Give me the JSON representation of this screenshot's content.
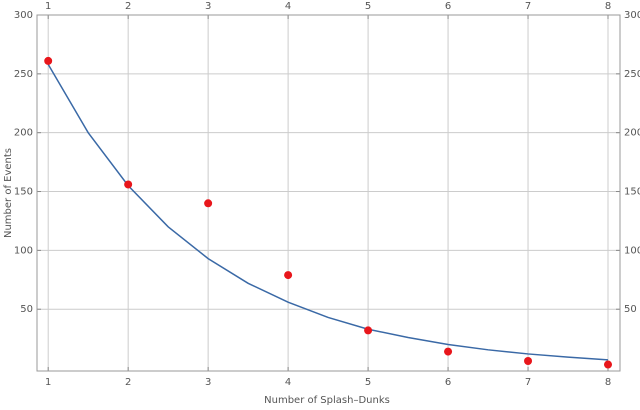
{
  "chart_data": {
    "type": "scatter",
    "x_label": "Number of Splash–Dunks",
    "y_label": "Number of Events",
    "xlim": [
      0.86,
      8.15
    ],
    "ylim": [
      -2.5,
      300
    ],
    "xticks": [
      1,
      2,
      3,
      4,
      5,
      6,
      7,
      8
    ],
    "yticks": [
      50,
      100,
      150,
      200,
      250,
      300
    ],
    "grid": true,
    "series": [
      {
        "type": "scatter",
        "color": "#e8161b",
        "x": [
          1,
          2,
          3,
          4,
          5,
          6,
          7,
          8
        ],
        "values": [
          261,
          156,
          140,
          79,
          32,
          14,
          6,
          3
        ]
      },
      {
        "type": "line",
        "color": "#3a69a6",
        "x": [
          1,
          1.5,
          2,
          2.5,
          3,
          3.5,
          4,
          4.5,
          5,
          5.5,
          6,
          6.5,
          7,
          7.5,
          8
        ],
        "values": [
          258,
          200,
          155,
          120,
          93,
          72,
          56,
          43,
          33,
          26,
          20,
          15.5,
          12,
          9.3,
          7
        ]
      }
    ]
  }
}
